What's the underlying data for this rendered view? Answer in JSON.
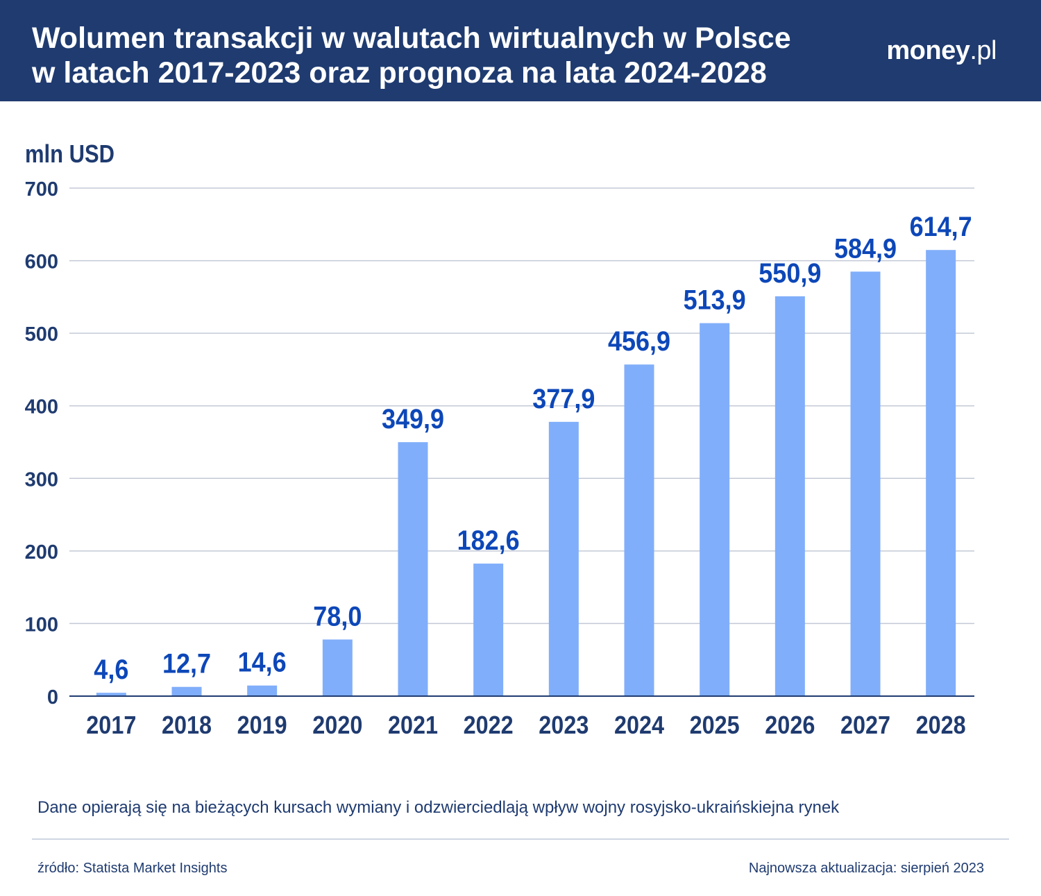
{
  "header": {
    "title_line1": "Wolumen transakcji w walutach wirtualnych w Polsce",
    "title_line2": "w latach 2017-2023 oraz prognoza na lata 2024-2028",
    "logo_main": "money",
    "logo_tld": ".pl",
    "background_color": "#1f3b70"
  },
  "chart_data": {
    "type": "bar",
    "title": "Wolumen transakcji w walutach wirtualnych w Polsce w latach 2017-2023 oraz prognoza na lata 2024-2028",
    "ylabel": "mln USD",
    "xlabel": "",
    "categories": [
      "2017",
      "2018",
      "2019",
      "2020",
      "2021",
      "2022",
      "2023",
      "2024",
      "2025",
      "2026",
      "2027",
      "2028"
    ],
    "values": [
      4.6,
      12.7,
      14.6,
      78.0,
      349.9,
      182.6,
      377.9,
      456.9,
      513.9,
      550.9,
      584.9,
      614.7
    ],
    "value_labels": [
      "4,6",
      "12,7",
      "14,6",
      "78,0",
      "349,9",
      "182,6",
      "377,9",
      "456,9",
      "513,9",
      "550,9",
      "584,9",
      "614,7"
    ],
    "ylim": [
      0,
      700
    ],
    "yticks": [
      "0",
      "100",
      "200",
      "300",
      "400",
      "500",
      "600",
      "700"
    ],
    "grid": true,
    "bar_color": "#80aefa",
    "label_color": "#0d47b8",
    "axis_text_color": "#1f3b70"
  },
  "footer": {
    "note": "Dane opierają się na bieżących kursach wymiany i odzwierciedlają wpływ wojny rosyjsko-ukraińskiejna rynek",
    "source": "źródło: Statista Market Insights",
    "updated": "Najnowsza aktualizacja: sierpień 2023"
  }
}
